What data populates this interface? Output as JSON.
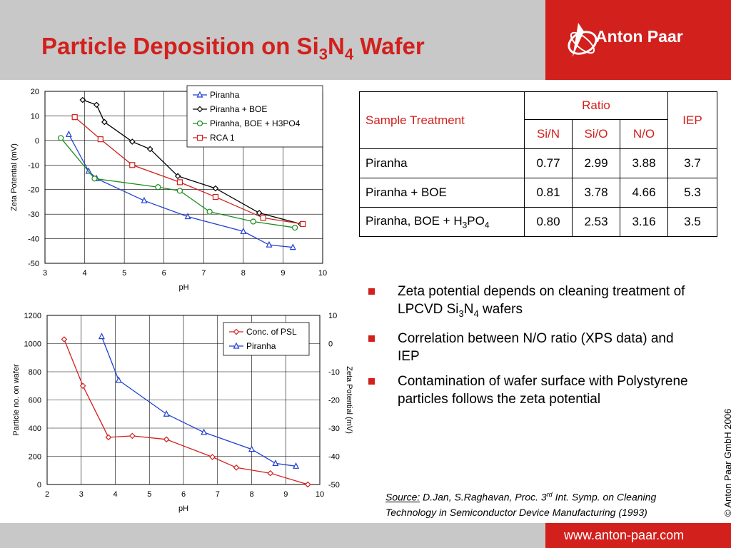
{
  "slide": {
    "title_main": "Particle Deposition on Si",
    "title_sub1": "3",
    "title_mid": "N",
    "title_sub2": "4",
    "title_end": " Wafer",
    "logo_text": "Anton Paar",
    "footer_url": "www.anton-paar.com",
    "copyright": "© Anton Paar GmbH 2006"
  },
  "colors": {
    "accent_red": "#d2201d",
    "header_gray": "#c8c8c8",
    "blue_series": "#1f3fd1",
    "green_series": "#1a8c1a"
  },
  "table": {
    "header_sample": "Sample Treatment",
    "header_ratio": "Ratio",
    "header_iep": "IEP",
    "sub_headers": [
      "Si/N",
      "Si/O",
      "N/O"
    ],
    "rows": [
      {
        "treatment": "Piranha",
        "sin": "0.77",
        "sio": "2.99",
        "no": "3.88",
        "iep": "3.7"
      },
      {
        "treatment": "Piranha + BOE",
        "sin": "0.81",
        "sio": "3.78",
        "no": "4.66",
        "iep": "5.3"
      },
      {
        "treatment_main": "Piranha, BOE + H",
        "treatment_sub1": "3",
        "treatment_mid": "PO",
        "treatment_sub2": "4",
        "sin": "0.80",
        "sio": "2.53",
        "no": "3.16",
        "iep": "3.5"
      }
    ]
  },
  "bullets": [
    {
      "main": "Zeta potential depends on cleaning treatment of LPCVD Si",
      "sub1": "3",
      "mid": "N",
      "sub2": "4",
      "end": " wafers"
    },
    {
      "text": "Correlation between N/O ratio (XPS data) and IEP"
    },
    {
      "text": "Contamination of wafer surface with Polystyrene particles follows the zeta potential"
    }
  ],
  "source": {
    "label": "Source:",
    "text1": " D.Jan, S.Raghavan, Proc. 3",
    "sup": "rd",
    "text2": " Int. Symp. on Cleaning",
    "line2": "Technology in Semiconductor Device Manufacturing (1993)"
  },
  "chart_data": [
    {
      "type": "line",
      "xlabel": "pH",
      "ylabel": "Zeta Potential (mV)",
      "xlim": [
        3,
        10
      ],
      "ylim": [
        -50,
        20
      ],
      "xticks": [
        3,
        4,
        5,
        6,
        7,
        8,
        9,
        10
      ],
      "yticks": [
        20,
        10,
        0,
        -10,
        -20,
        -30,
        -40,
        -50
      ],
      "grid": true,
      "legend_position": "top-right",
      "series": [
        {
          "name": "Piranha",
          "color": "#1f3fd1",
          "marker": "triangle",
          "x": [
            3.6,
            4.1,
            4.3,
            5.5,
            6.6,
            8.0,
            8.65,
            9.25
          ],
          "y": [
            2.5,
            -12.5,
            -15.5,
            -24.5,
            -31,
            -37,
            -42.5,
            -43.5
          ]
        },
        {
          "name": "Piranha + BOE",
          "color": "#000000",
          "marker": "diamond",
          "x": [
            3.95,
            4.3,
            4.5,
            5.2,
            5.65,
            6.35,
            7.3,
            8.4,
            9.45
          ],
          "y": [
            16.5,
            14.5,
            7.5,
            -0.5,
            -3.5,
            -14.5,
            -19.5,
            -29.5,
            -34
          ]
        },
        {
          "name": "Piranha, BOE + H3PO4",
          "color": "#1a8c1a",
          "marker": "circle",
          "x": [
            3.4,
            4.25,
            5.85,
            6.4,
            7.15,
            8.25,
            9.3
          ],
          "y": [
            1,
            -15.5,
            -19,
            -20.5,
            -29,
            -33,
            -35.5
          ]
        },
        {
          "name": "RCA 1",
          "color": "#d2201d",
          "marker": "square",
          "x": [
            3.75,
            4.4,
            5.2,
            6.4,
            7.3,
            8.5,
            9.5
          ],
          "y": [
            9.5,
            0.5,
            -10,
            -17,
            -23,
            -31.5,
            -34
          ]
        }
      ]
    },
    {
      "type": "line",
      "xlabel": "pH",
      "ylabel": "Particle no. on wafer",
      "y2label": "Zeta Potential (mV)",
      "xlim": [
        2,
        10
      ],
      "ylim": [
        0,
        1200
      ],
      "y2lim": [
        -50,
        10
      ],
      "xticks": [
        2,
        3,
        4,
        5,
        6,
        7,
        8,
        9,
        10
      ],
      "yticks": [
        1200,
        1000,
        800,
        600,
        400,
        200,
        0
      ],
      "y2ticks": [
        10,
        0,
        -10,
        -20,
        -30,
        -40,
        -50
      ],
      "grid": true,
      "legend_position": "top-right",
      "series": [
        {
          "name": "Conc. of PSL",
          "color": "#d2201d",
          "marker": "diamond",
          "axis": "left",
          "x": [
            2.5,
            3.05,
            3.8,
            4.5,
            5.5,
            6.85,
            7.55,
            8.55,
            9.65
          ],
          "y": [
            1030,
            700,
            335,
            345,
            320,
            195,
            120,
            80,
            0
          ]
        },
        {
          "name": "Piranha",
          "color": "#1f3fd1",
          "marker": "triangle",
          "axis": "right",
          "x": [
            3.6,
            4.1,
            5.5,
            6.6,
            8.0,
            8.7,
            9.3
          ],
          "y": [
            2.5,
            -13,
            -25,
            -31.5,
            -37.5,
            -42.5,
            -43.5
          ]
        }
      ]
    }
  ]
}
